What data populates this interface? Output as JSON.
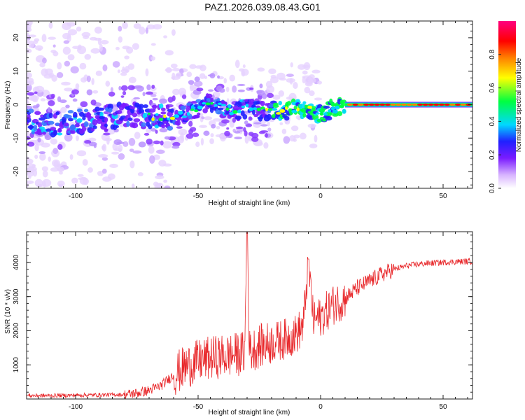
{
  "title": "PAZ1.2026.039.08.43.G01",
  "chart_data": [
    {
      "type": "heatmap",
      "xlabel": "Height of straight line (km)",
      "ylabel": "Frequency (Hz)",
      "xlim": [
        -120,
        62
      ],
      "ylim": [
        -25,
        25
      ],
      "xticks": [
        -100,
        -50,
        0,
        50
      ],
      "yticks": [
        -20,
        -10,
        0,
        10,
        20
      ],
      "colorbar": {
        "label": "Normalized spectral amplitude",
        "range": [
          0,
          1
        ],
        "ticks": [
          "0.0",
          "0.2",
          "0.4",
          "0.6",
          "0.8"
        ],
        "colors": [
          "#ffffff",
          "#d8b4ff",
          "#7a1cff",
          "#2020ff",
          "#00d8ff",
          "#00ff40",
          "#ffff00",
          "#ff8000",
          "#ff0000",
          "#ff0080"
        ]
      },
      "ridge": {
        "description": "Dominant Doppler frequency trace",
        "height_km": [
          -118,
          -110,
          -100,
          -90,
          -80,
          -70,
          -60,
          -50,
          -45,
          -40,
          -35,
          -30,
          -25,
          -20,
          -15,
          -10,
          -5,
          0,
          5,
          10,
          20,
          30,
          40,
          50,
          60
        ],
        "frequency_hz": [
          -5,
          -6,
          -5,
          -4.5,
          -3,
          -3.5,
          -4,
          -1,
          1,
          -1,
          -2,
          -1,
          -2,
          -1.5,
          -2,
          -1,
          -1.5,
          -3,
          -1,
          0,
          0,
          0,
          0,
          0,
          0
        ]
      }
    },
    {
      "type": "line",
      "xlabel": "Height of straight line (km)",
      "ylabel": "SNR (10 * v/v)",
      "xlim": [
        -120,
        62
      ],
      "ylim": [
        0,
        4900
      ],
      "xticks": [
        -100,
        -50,
        0,
        50
      ],
      "yticks": [
        1000,
        2000,
        3000,
        4000
      ],
      "series": [
        {
          "name": "SNR",
          "color": "#e8272a",
          "x": [
            -120,
            -110,
            -100,
            -90,
            -80,
            -75,
            -70,
            -65,
            -60,
            -55,
            -50,
            -45,
            -40,
            -35,
            -31,
            -30,
            -29,
            -25,
            -20,
            -15,
            -10,
            -7,
            -5,
            -3,
            0,
            5,
            10,
            15,
            20,
            25,
            30,
            35,
            40,
            45,
            50,
            55,
            60,
            62
          ],
          "y": [
            100,
            100,
            110,
            120,
            130,
            170,
            250,
            400,
            700,
            950,
            1100,
            1200,
            1250,
            1300,
            1350,
            4900,
            1400,
            1550,
            1650,
            1750,
            1900,
            2150,
            4100,
            2300,
            2400,
            2750,
            2950,
            3250,
            3450,
            3650,
            3800,
            3900,
            3950,
            3980,
            4000,
            4020,
            4030,
            4030
          ]
        }
      ]
    }
  ]
}
